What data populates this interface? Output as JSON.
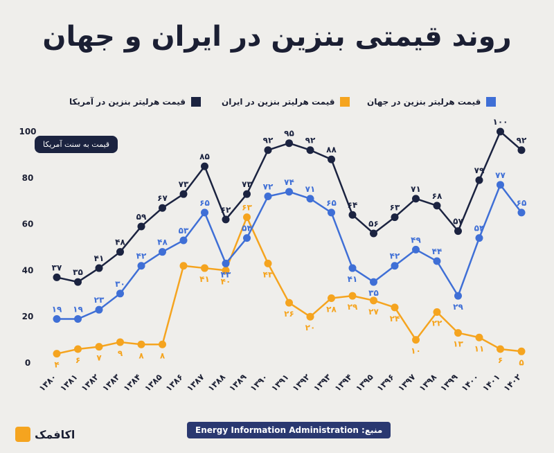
{
  "title": "روند قیمتی بنزین در ایران و جهان",
  "badge": "قیمت به سنت آمریکا",
  "source": "منبع: Energy Information Administration",
  "logo_text": "اکافمک",
  "chart_data": {
    "type": "line",
    "x": [
      "۱۳۸۰",
      "۱۳۸۱",
      "۱۳۸۲",
      "۱۳۸۳",
      "۱۳۸۴",
      "۱۳۸۵",
      "۱۳۸۶",
      "۱۳۸۷",
      "۱۳۸۸",
      "۱۳۸۹",
      "۱۳۹۰",
      "۱۳۹۱",
      "۱۳۹۲",
      "۱۳۹۳",
      "۱۳۹۴",
      "۱۳۹۵",
      "۱۳۹۶",
      "۱۳۹۷",
      "۱۳۹۸",
      "۱۳۹۹",
      "۱۴۰۰",
      "۱۴۰۱",
      "۱۴۰۲"
    ],
    "yticks": [
      "0",
      "20",
      "40",
      "60",
      "80",
      "100"
    ],
    "ylim": [
      0,
      100
    ],
    "series": [
      {
        "name": "قیمت هرلیتر بنزین در آمریکا",
        "color": "#1b2340",
        "values": [
          37,
          35,
          41,
          48,
          59,
          67,
          73,
          85,
          62,
          73,
          92,
          95,
          92,
          88,
          64,
          56,
          63,
          71,
          68,
          57,
          79,
          100,
          92
        ],
        "labels": [
          "۳۷",
          "۳۵",
          "۴۱",
          "۴۸",
          "۵۹",
          "۶۷",
          "۷۳",
          "۸۵",
          "۶۲",
          "۷۳",
          "۹۲",
          "۹۵",
          "۹۲",
          "۸۸",
          "۶۴",
          "۵۶",
          "۶۳",
          "۷۱",
          "۶۸",
          "۵۷",
          "۷۹",
          "۱۰۰",
          "۹۲"
        ]
      },
      {
        "name": "قیمت هرلیتر بنزین در ایران",
        "color": "#f5a41f",
        "values": [
          4,
          6,
          7,
          9,
          8,
          8,
          42,
          41,
          40,
          63,
          43,
          26,
          20,
          28,
          29,
          27,
          24,
          10,
          22,
          13,
          11,
          6,
          5
        ],
        "labels": [
          "۴",
          "۶",
          "۷",
          "۹",
          "۸",
          "۸",
          "",
          "۴۱",
          "۴۰",
          "۶۳",
          "۴۳",
          "۲۶",
          "۲۰",
          "۲۸",
          "۲۹",
          "۲۷",
          "۲۴",
          "۱۰",
          "۲۲",
          "۱۳",
          "۱۱",
          "۶",
          "۵"
        ]
      },
      {
        "name": "قیمت هرلیتر بنزین در جهان",
        "color": "#3f6fd6",
        "values": [
          19,
          19,
          23,
          30,
          42,
          48,
          53,
          65,
          43,
          54,
          72,
          74,
          71,
          65,
          41,
          35,
          42,
          49,
          44,
          29,
          54,
          77,
          65
        ],
        "labels": [
          "۱۹",
          "۱۹",
          "۲۳",
          "۳۰",
          "۴۲",
          "۴۸",
          "۵۳",
          "۶۵",
          "۴۳",
          "۵۴",
          "۷۲",
          "۷۴",
          "۷۱",
          "۶۵",
          "۴۱",
          "۳۵",
          "۴۲",
          "۴۹",
          "۴۴",
          "۲۹",
          "۵۴",
          "۷۷",
          "۶۵"
        ]
      }
    ]
  }
}
